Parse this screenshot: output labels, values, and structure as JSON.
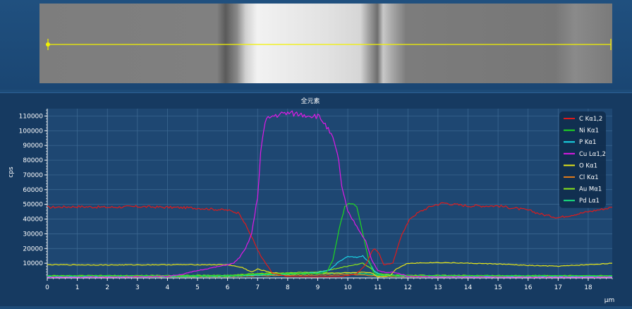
{
  "chart_data": {
    "type": "line",
    "title": "全元素",
    "xlabel": "μm",
    "ylabel": "cps",
    "xlim": [
      0,
      18.8
    ],
    "ylim": [
      0,
      115000
    ],
    "xticks": [
      0,
      1,
      2,
      3,
      4,
      5,
      6,
      7,
      8,
      9,
      10,
      11,
      12,
      13,
      14,
      15,
      16,
      17,
      18
    ],
    "yticks": [
      10000,
      20000,
      30000,
      40000,
      50000,
      60000,
      70000,
      80000,
      90000,
      100000,
      110000
    ],
    "grid": true,
    "legend_position": "top-right",
    "series": [
      {
        "name": "C Kα1,2",
        "color": "#e01a1a",
        "x": [
          0,
          1,
          2,
          3,
          4,
          5,
          6,
          6.4,
          6.8,
          7.1,
          7.5,
          8,
          9,
          9.8,
          10.3,
          10.6,
          10.8,
          10.9,
          11.05,
          11.2,
          11.5,
          11.8,
          12.1,
          12.4,
          12.8,
          13.2,
          13.5,
          14,
          15,
          16,
          16.5,
          17,
          17.5,
          18,
          18.8
        ],
        "y": [
          48000,
          48500,
          48000,
          48500,
          48000,
          47500,
          46000,
          44000,
          28000,
          15000,
          3000,
          1000,
          800,
          1000,
          3000,
          9000,
          18000,
          20000,
          16000,
          9000,
          10000,
          30000,
          41000,
          45000,
          49000,
          51000,
          50000,
          49000,
          49000,
          46000,
          43000,
          41000,
          43000,
          45000,
          48000
        ]
      },
      {
        "name": "Ni Kα1",
        "color": "#20d820",
        "x": [
          0,
          5,
          6,
          6.5,
          7,
          8,
          9,
          9.3,
          9.5,
          9.7,
          9.9,
          10.1,
          10.3,
          10.5,
          10.7,
          10.85,
          11,
          11.2,
          11.5,
          12,
          18.8
        ],
        "y": [
          1500,
          1500,
          1600,
          2000,
          2500,
          3000,
          3000,
          4000,
          12000,
          32000,
          48000,
          51000,
          48000,
          30000,
          12000,
          4000,
          2500,
          2000,
          1800,
          1600,
          1500
        ]
      },
      {
        "name": "P Kα1",
        "color": "#19d6e6",
        "x": [
          0,
          6,
          7,
          8,
          9,
          9.4,
          9.7,
          10,
          10.3,
          10.5,
          10.7,
          10.9,
          11.2,
          12,
          18.8
        ],
        "y": [
          1200,
          1500,
          2000,
          2800,
          3500,
          5500,
          11000,
          14500,
          14000,
          15000,
          11000,
          4000,
          2000,
          1500,
          1200
        ]
      },
      {
        "name": "Cu Lα1,2",
        "color": "#e019e6",
        "x": [
          0,
          2,
          3,
          4,
          4.5,
          5,
          5.5,
          6,
          6.2,
          6.4,
          6.6,
          6.8,
          7,
          7.1,
          7.2,
          7.3,
          7.5,
          7.7,
          8,
          8.5,
          9,
          9.2,
          9.5,
          9.7,
          9.8,
          10,
          10.3,
          10.6,
          10.8,
          11,
          11.3,
          11.5,
          11.7,
          12,
          13,
          18.8
        ],
        "y": [
          500,
          600,
          800,
          1200,
          2500,
          5000,
          7000,
          9000,
          10000,
          14000,
          20000,
          30000,
          55000,
          85000,
          100000,
          108000,
          110000,
          111000,
          112000,
          111000,
          110000,
          106000,
          95000,
          80000,
          62000,
          45000,
          35000,
          25000,
          12000,
          5000,
          3500,
          4000,
          3000,
          1200,
          700,
          500
        ]
      },
      {
        "name": "O Kα1",
        "color": "#e6e619",
        "x": [
          0,
          2,
          4,
          6,
          6.5,
          6.8,
          7,
          7.2,
          7.5,
          8,
          9,
          10,
          10.5,
          10.8,
          11,
          11.2,
          11.4,
          11.6,
          12,
          13,
          14,
          15,
          16,
          17,
          18,
          18.8
        ],
        "y": [
          9000,
          8800,
          9000,
          9000,
          7000,
          4000,
          6000,
          5000,
          3500,
          3000,
          3000,
          3500,
          4000,
          3500,
          800,
          1000,
          1500,
          6000,
          10000,
          10500,
          10000,
          9500,
          8500,
          8000,
          9000,
          10000
        ]
      },
      {
        "name": "Cl Kα1",
        "color": "#e07a1a",
        "x": [
          0,
          6,
          7,
          8,
          9,
          10,
          10.5,
          11,
          12,
          18.8
        ],
        "y": [
          800,
          900,
          1500,
          1800,
          2000,
          2200,
          2000,
          1200,
          900,
          800
        ]
      },
      {
        "name": "Au Mα1",
        "color": "#8ce619",
        "x": [
          0,
          6,
          7,
          8,
          9,
          10,
          10.5,
          10.8,
          11,
          11.5,
          12,
          18.8
        ],
        "y": [
          1500,
          1800,
          3000,
          3500,
          4000,
          8000,
          10000,
          6000,
          3000,
          2000,
          1800,
          1500
        ]
      },
      {
        "name": "Pd Lα1",
        "color": "#19e680",
        "x": [
          0,
          6,
          7,
          8,
          9,
          10,
          10.5,
          11,
          12,
          18.8
        ],
        "y": [
          1000,
          1100,
          2000,
          2500,
          3000,
          3500,
          3000,
          1800,
          1200,
          1000
        ]
      }
    ]
  }
}
